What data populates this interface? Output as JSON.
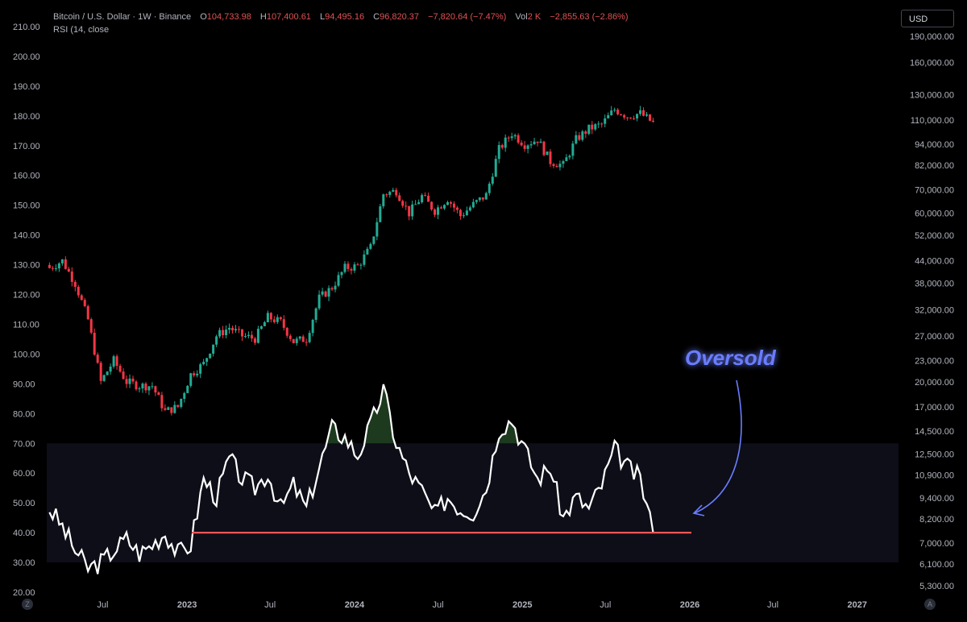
{
  "header": {
    "symbol": "Bitcoin / U.S. Dollar · 1W · Binance",
    "o_label": "O",
    "o_value": "104,733.98",
    "h_label": "H",
    "h_value": "107,400.61",
    "l_label": "L",
    "l_value": "94,495.16",
    "c_label": "C",
    "c_value": "96,820.37",
    "change": "−7,820.64 (−7.47%)",
    "vol_label": "Vol",
    "vol_value": "2 K",
    "vol_change": "−2,855.63 (−2.86%)"
  },
  "rsi_label": "RSI (14, close",
  "currency_button": "USD",
  "annotation": "Oversold",
  "corner_left": "Z",
  "corner_right": "A",
  "colors": {
    "up": "#22ab94",
    "down": "#f23645",
    "rsi": "#ffffff",
    "support": "#f05656",
    "annotation": "#6a7dff",
    "band": "#0d0e18"
  },
  "chart_data": {
    "type": "line",
    "left_axis": {
      "ticks": [
        "210.00",
        "200.00",
        "190.00",
        "180.00",
        "170.00",
        "160.00",
        "150.00",
        "140.00",
        "130.00",
        "120.00",
        "110.00",
        "100.00",
        "90.00",
        "80.00",
        "70.00",
        "60.00",
        "50.00",
        "40.00",
        "30.00",
        "20.00"
      ],
      "range": [
        20,
        210
      ]
    },
    "right_axis": {
      "ticks": [
        "190,000.00",
        "160,000.00",
        "130,000.00",
        "110,000.00",
        "94,000.00",
        "82,000.00",
        "70,000.00",
        "60,000.00",
        "52,000.00",
        "44,000.00",
        "38,000.00",
        "32,000.00",
        "27,000.00",
        "23,000.00",
        "20,000.00",
        "17,000.00",
        "14,500.00",
        "12,500.00",
        "10,900.00",
        "9,400.00",
        "8,200.00",
        "7,000.00",
        "6,100.00",
        "5,300.00"
      ],
      "scale": "log"
    },
    "x_ticks": [
      "Jul",
      "2023",
      "Jul",
      "2024",
      "Jul",
      "2025",
      "Jul",
      "2026",
      "Jul",
      "2027"
    ],
    "x_range": [
      "2022-03-01",
      "2027-04-01"
    ],
    "rsi_band": [
      30,
      70
    ],
    "rsi_support": 40,
    "price_series": {
      "name": "BTCUSD weekly",
      "dates": [
        "2022-03-07",
        "2022-04-04",
        "2022-05-02",
        "2022-05-30",
        "2022-06-27",
        "2022-07-25",
        "2022-08-22",
        "2022-09-19",
        "2022-10-17",
        "2022-11-14",
        "2022-12-12",
        "2023-01-09",
        "2023-02-06",
        "2023-03-06",
        "2023-04-03",
        "2023-05-01",
        "2023-05-29",
        "2023-06-26",
        "2023-07-24",
        "2023-08-21",
        "2023-09-18",
        "2023-10-16",
        "2023-11-13",
        "2023-12-11",
        "2024-01-08",
        "2024-02-05",
        "2024-03-04",
        "2024-04-01",
        "2024-04-29",
        "2024-05-27",
        "2024-06-24",
        "2024-07-22",
        "2024-08-19",
        "2024-09-16",
        "2024-10-14",
        "2024-11-11",
        "2024-12-09",
        "2025-01-06",
        "2025-02-03",
        "2025-03-03",
        "2025-03-31",
        "2025-04-28",
        "2025-05-26",
        "2025-06-23",
        "2025-07-21",
        "2025-08-18",
        "2025-09-15",
        "2025-10-13"
      ],
      "close": [
        42000,
        44000,
        38000,
        30000,
        20000,
        23000,
        20000,
        19500,
        19500,
        16500,
        17000,
        21000,
        22500,
        27000,
        28500,
        27000,
        26500,
        30500,
        29500,
        26000,
        26500,
        34500,
        37000,
        42000,
        42500,
        48000,
        68000,
        69500,
        60000,
        67000,
        61000,
        66000,
        59000,
        63500,
        67500,
        91000,
        101000,
        94000,
        97000,
        84000,
        82000,
        97000,
        104000,
        107000,
        118000,
        113000,
        115000,
        108000
      ]
    },
    "rsi_series": {
      "name": "RSI (14, close)",
      "dates": [
        "2022-03-07",
        "2022-04-04",
        "2022-05-02",
        "2022-05-30",
        "2022-06-27",
        "2022-07-25",
        "2022-08-22",
        "2022-09-19",
        "2022-10-17",
        "2022-11-14",
        "2022-12-12",
        "2023-01-09",
        "2023-02-06",
        "2023-03-06",
        "2023-04-03",
        "2023-05-01",
        "2023-05-29",
        "2023-06-26",
        "2023-07-24",
        "2023-08-21",
        "2023-09-18",
        "2023-10-16",
        "2023-11-13",
        "2023-12-11",
        "2024-01-08",
        "2024-02-05",
        "2024-03-04",
        "2024-04-01",
        "2024-04-29",
        "2024-05-27",
        "2024-06-24",
        "2024-07-22",
        "2024-08-19",
        "2024-09-16",
        "2024-10-14",
        "2024-11-11",
        "2024-12-09",
        "2025-01-06",
        "2025-02-03",
        "2025-03-03",
        "2025-03-31",
        "2025-04-28",
        "2025-05-26",
        "2025-06-23",
        "2025-07-21",
        "2025-08-18",
        "2025-09-15",
        "2025-10-13"
      ],
      "values": [
        48,
        42,
        34,
        28,
        30,
        34,
        38,
        33,
        36,
        40,
        33,
        36,
        58,
        52,
        65,
        58,
        55,
        60,
        48,
        56,
        48,
        62,
        75,
        72,
        66,
        76,
        88,
        70,
        60,
        54,
        46,
        52,
        48,
        47,
        55,
        75,
        78,
        68,
        58,
        62,
        45,
        52,
        48,
        56,
        68,
        62,
        58,
        40
      ]
    }
  }
}
